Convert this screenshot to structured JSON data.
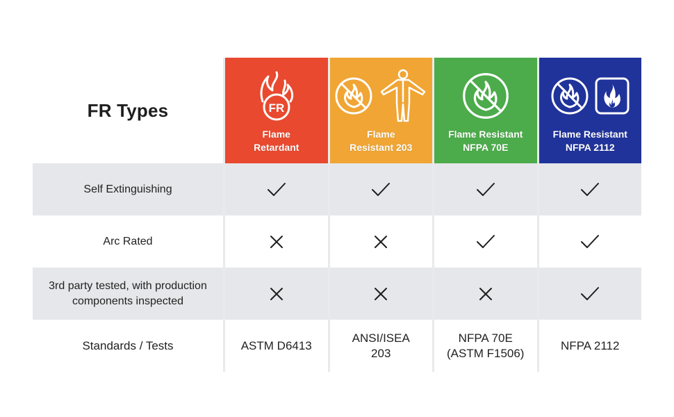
{
  "title": "FR Types",
  "colors": {
    "flame_retardant": "#e8492f",
    "flame_resistant_203": "#f0a534",
    "nfpa_70e": "#4cab4b",
    "nfpa_2112": "#20339a",
    "row_gray": "#e6e7ea",
    "mark": "#1e1e1e"
  },
  "columns": [
    {
      "line1": "Flame",
      "line2": "Retardant",
      "icons": [
        "fr-flame-icon"
      ]
    },
    {
      "line1": "Flame",
      "line2": "Resistant 203",
      "icons": [
        "no-flame-icon",
        "coverall-icon"
      ]
    },
    {
      "line1": "Flame Resistant",
      "line2": "NFPA 70E",
      "icons": [
        "no-flame-icon"
      ]
    },
    {
      "line1": "Flame Resistant",
      "line2": "NFPA 2112",
      "icons": [
        "no-flame-icon",
        "fire-box-icon"
      ]
    }
  ],
  "rows": [
    {
      "label": "Self Extinguishing",
      "marks": [
        "check",
        "check",
        "check",
        "check"
      ]
    },
    {
      "label": "Arc Rated",
      "marks": [
        "cross",
        "cross",
        "check",
        "check"
      ]
    },
    {
      "label_line1": "3rd party tested, with production",
      "label_line2": "components inspected",
      "marks": [
        "cross",
        "cross",
        "cross",
        "check"
      ]
    }
  ],
  "standards": {
    "label": "Standards / Tests",
    "values": [
      {
        "line1": "ASTM D6413",
        "line2": ""
      },
      {
        "line1": "ANSI/ISEA",
        "line2": "203"
      },
      {
        "line1": "NFPA 70E",
        "line2": "(ASTM F1506)"
      },
      {
        "line1": "NFPA 2112",
        "line2": ""
      }
    ]
  }
}
